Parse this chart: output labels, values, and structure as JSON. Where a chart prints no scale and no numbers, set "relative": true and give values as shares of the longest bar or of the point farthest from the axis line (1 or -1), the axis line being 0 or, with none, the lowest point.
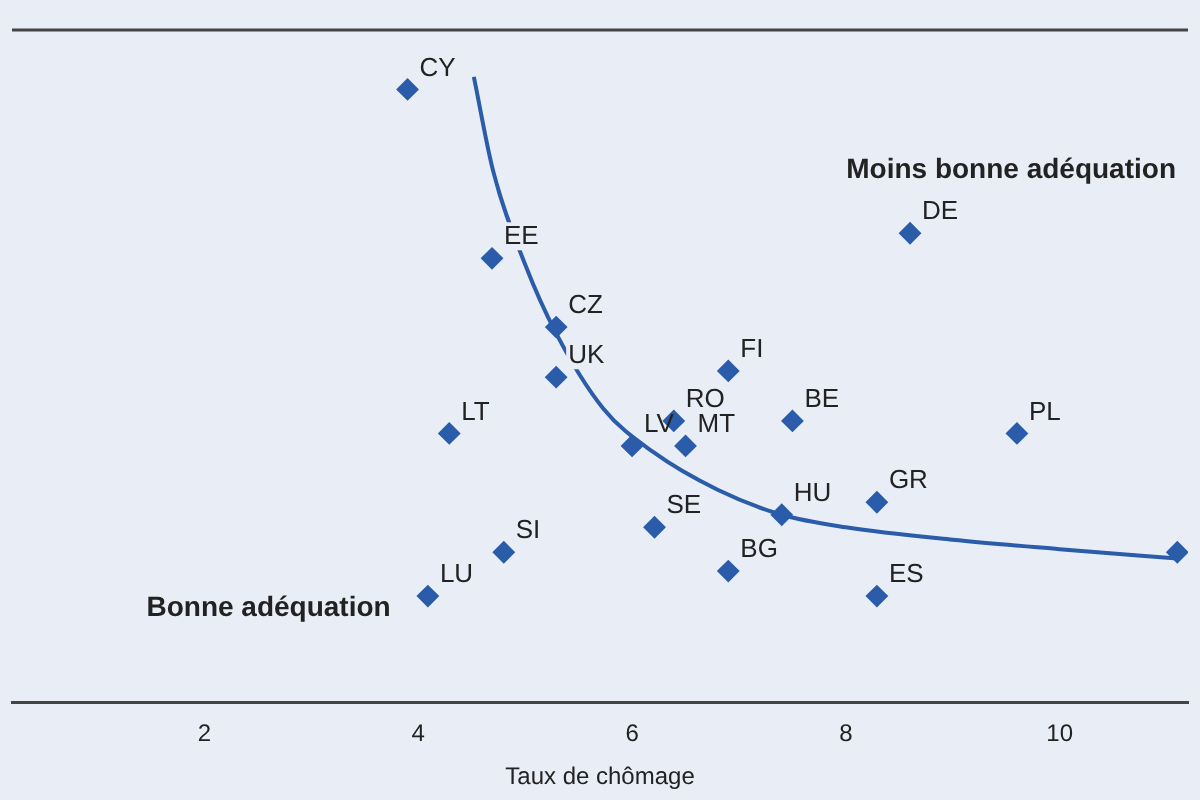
{
  "chart_data": {
    "type": "scatter",
    "xlabel": "Taux de chômage",
    "relative": true,
    "marker": "diamond",
    "xlim": [
      0.2,
      11.2
    ],
    "xticks": [
      2,
      4,
      6,
      8,
      10
    ],
    "series": [
      {
        "color": "#2a5caa",
        "x": [
          3.9,
          4.69,
          5.29,
          5.29,
          4.29,
          6.9,
          6.39,
          6.0,
          6.5,
          7.5,
          9.6,
          8.6,
          7.4,
          8.29,
          6.21,
          6.9,
          4.8,
          4.09,
          8.29,
          11.1
        ],
        "values": [
          0.98,
          0.71,
          0.6,
          0.52,
          0.43,
          0.53,
          0.45,
          0.41,
          0.41,
          0.45,
          0.43,
          0.75,
          0.3,
          0.32,
          0.28,
          0.21,
          0.24,
          0.17,
          0.17,
          0.24
        ]
      },
      {
        "type": "line",
        "color": "#2a5caa",
        "marker": "none",
        "x": [
          4.52,
          4.7,
          5.0,
          5.29,
          5.73,
          6.2,
          6.8,
          7.4,
          8,
          9,
          10,
          11.1
        ],
        "values": [
          1,
          0.85,
          0.7,
          0.59,
          0.47,
          0.4,
          0.34,
          0.3,
          0.28,
          0.26,
          0.245,
          0.23
        ]
      }
    ],
    "annotations": [
      {
        "text": "CY",
        "x": 3.9,
        "y": 0.98
      },
      {
        "text": "EE",
        "x": 4.69,
        "y": 0.71
      },
      {
        "text": "CZ",
        "x": 5.29,
        "y": 0.6
      },
      {
        "text": "UK",
        "x": 5.29,
        "y": 0.52
      },
      {
        "text": "LT",
        "x": 4.29,
        "y": 0.43
      },
      {
        "text": "FI",
        "x": 6.9,
        "y": 0.53
      },
      {
        "text": "RO",
        "x": 6.39,
        "y": 0.45
      },
      {
        "text": "LV",
        "x": 6.0,
        "y": 0.41
      },
      {
        "text": "MT",
        "x": 6.5,
        "y": 0.41
      },
      {
        "text": "BE",
        "x": 7.5,
        "y": 0.45
      },
      {
        "text": "PL",
        "x": 9.6,
        "y": 0.43
      },
      {
        "text": "DE",
        "x": 8.6,
        "y": 0.75
      },
      {
        "text": "HU",
        "x": 7.4,
        "y": 0.3
      },
      {
        "text": "GR",
        "x": 8.29,
        "y": 0.32
      },
      {
        "text": "SE",
        "x": 6.21,
        "y": 0.28
      },
      {
        "text": "BG",
        "x": 6.9,
        "y": 0.21
      },
      {
        "text": "SI",
        "x": 4.8,
        "y": 0.24
      },
      {
        "text": "LU",
        "x": 4.09,
        "y": 0.17
      },
      {
        "text": "ES",
        "x": 8.29,
        "y": 0.17
      },
      "Moins bonne adéquation",
      "Bonne adéquation"
    ]
  }
}
